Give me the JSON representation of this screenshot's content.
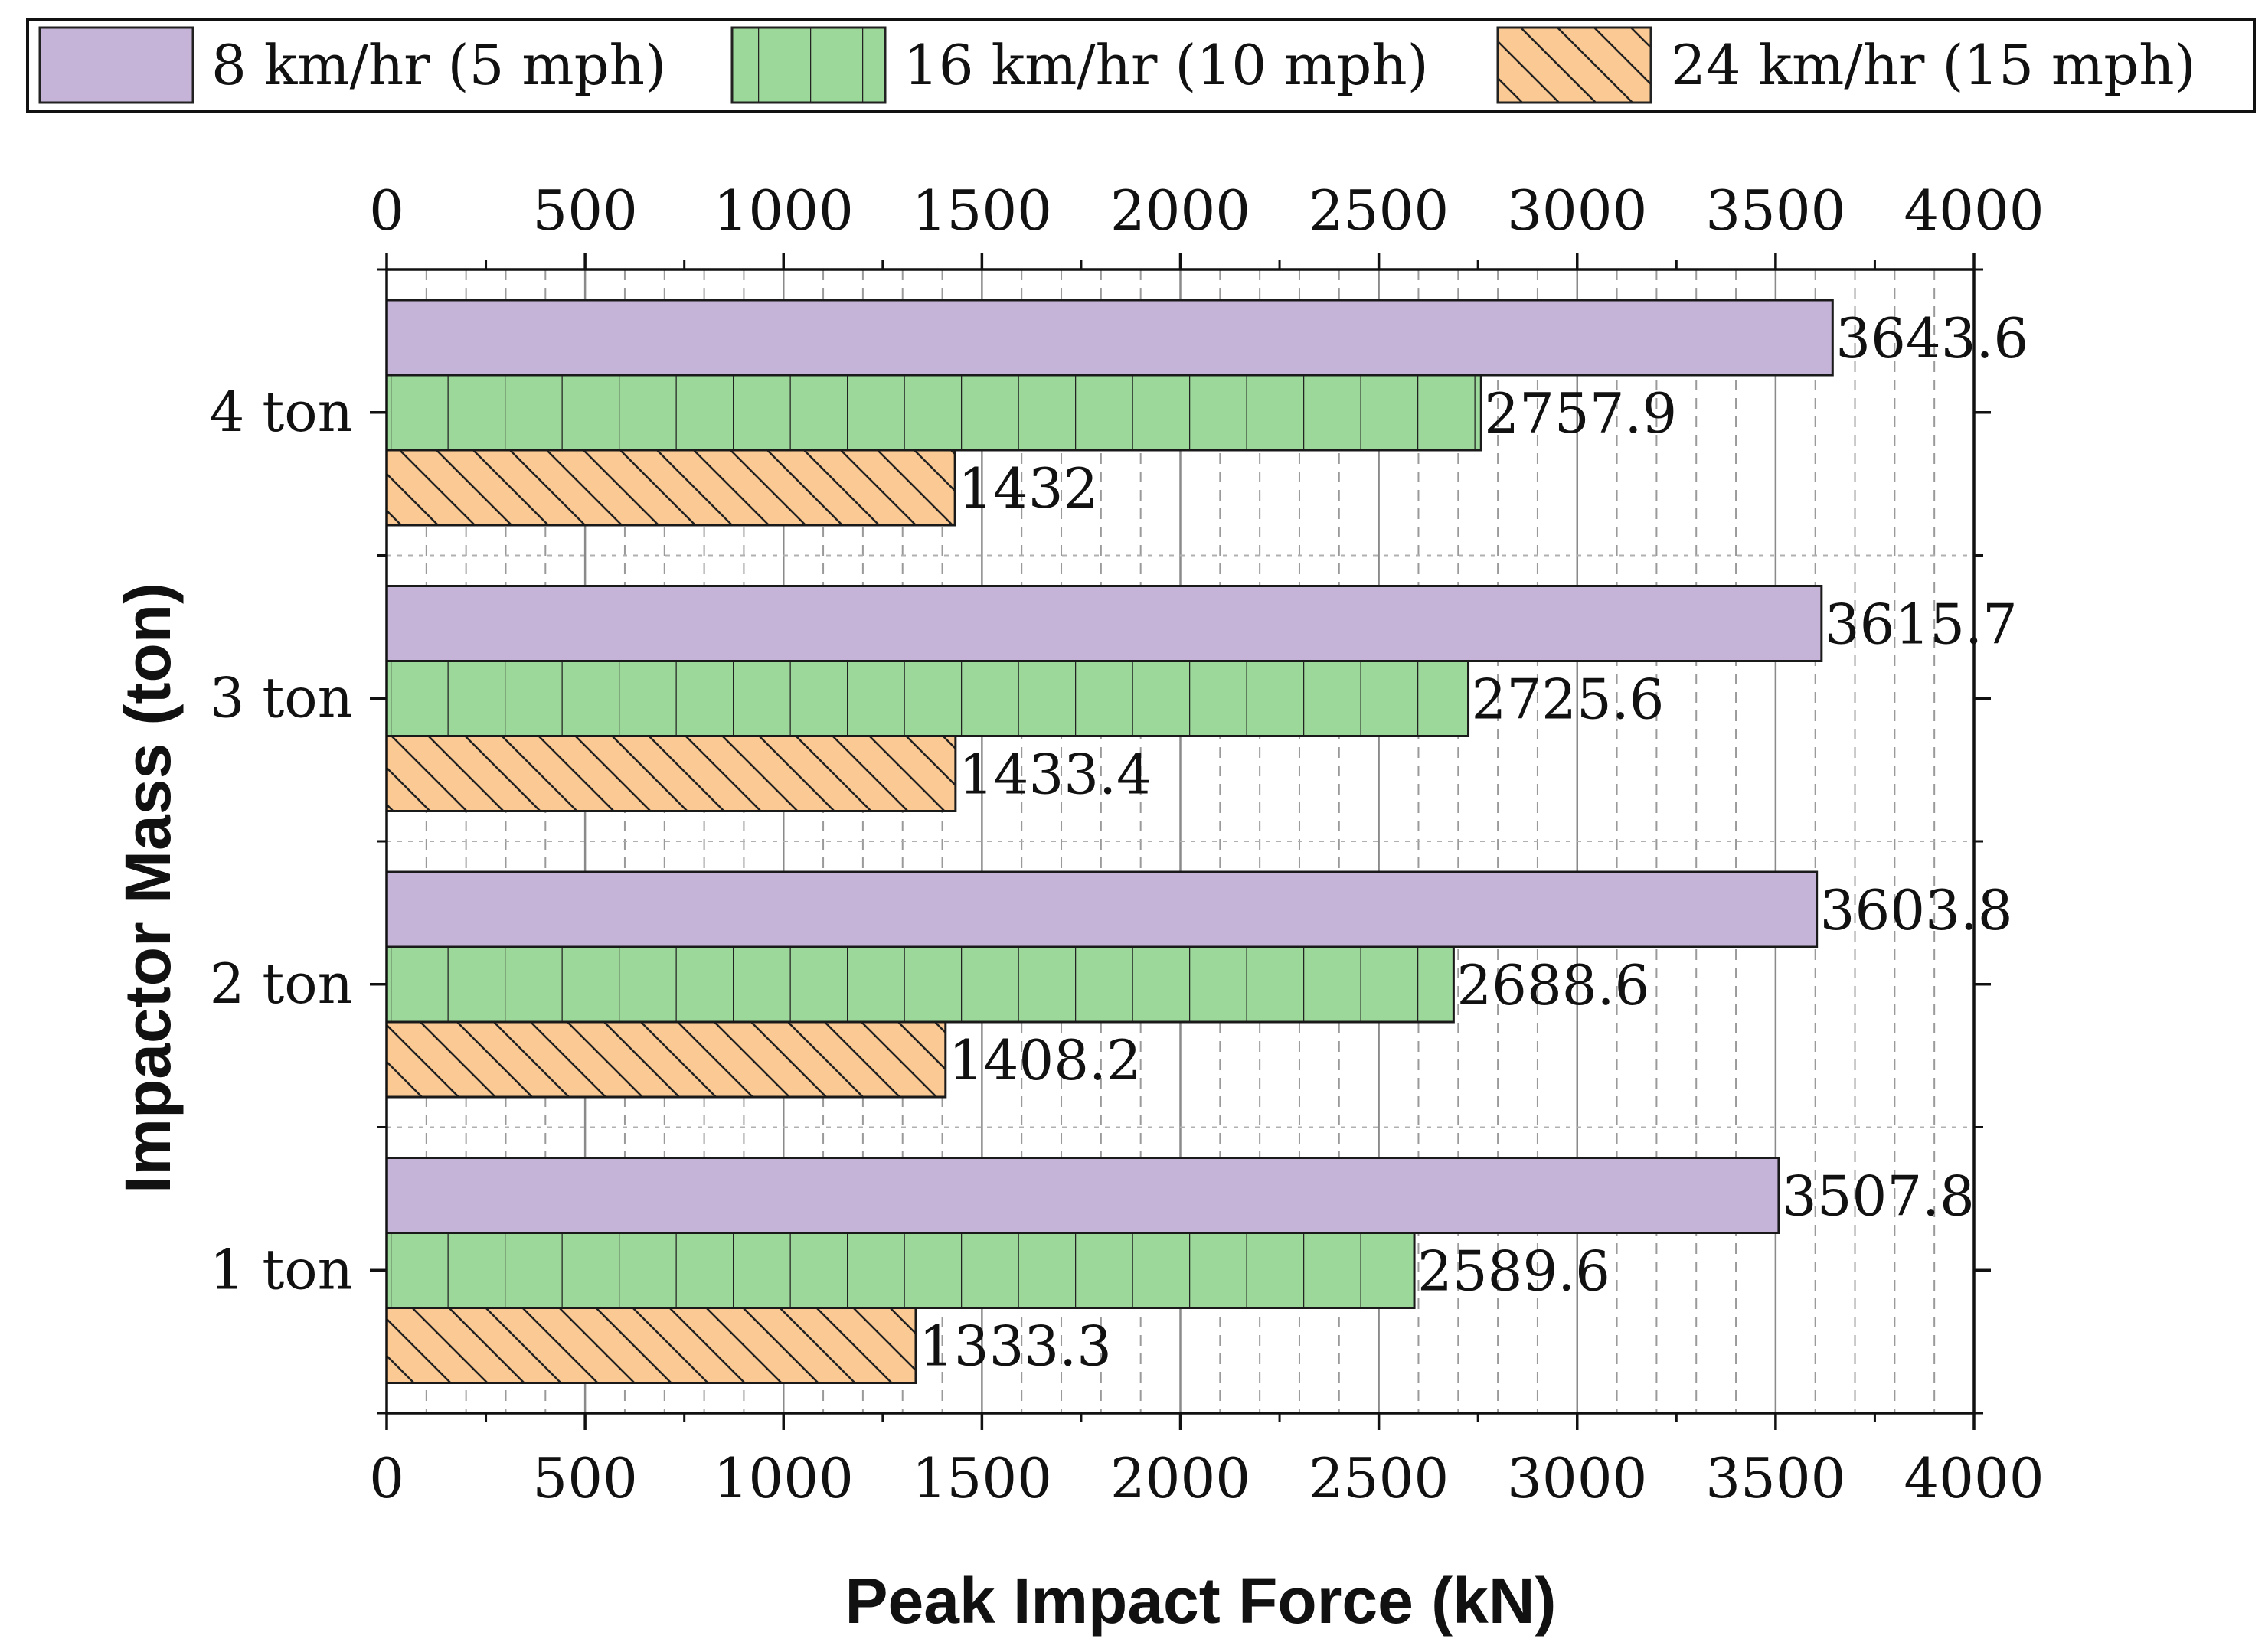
{
  "chart_data": {
    "type": "bar",
    "orientation": "horizontal",
    "categories": [
      "1 ton",
      "2 ton",
      "3 ton",
      "4 ton"
    ],
    "series": [
      {
        "name": "8 km/hr (5 mph)",
        "values": [
          3507.8,
          3603.8,
          3615.7,
          3643.6
        ],
        "labels": [
          "3507.8",
          "3603.8",
          "3615.7",
          "3643.6"
        ],
        "color": "#c5b4d8",
        "pattern": "solid"
      },
      {
        "name": "16 km/hr (10 mph)",
        "values": [
          2589.6,
          2688.6,
          2725.6,
          2757.9
        ],
        "labels": [
          "2589.6",
          "2688.6",
          "2725.6",
          "2757.9"
        ],
        "color": "#9dd89b",
        "pattern": "vertical-lines"
      },
      {
        "name": "24 km/hr (15 mph)",
        "values": [
          1333.3,
          1408.2,
          1433.4,
          1432
        ],
        "labels": [
          "1333.3",
          "1408.2",
          "1433.4",
          "1432"
        ],
        "color": "#fbc993",
        "pattern": "diagonal-hatch"
      }
    ],
    "xlabel": "Peak Impact Force (kN)",
    "ylabel": "Impactor Mass (ton)",
    "xlim": [
      0,
      4000
    ],
    "xticks": [
      0,
      500,
      1000,
      1500,
      2000,
      2500,
      3000,
      3500,
      4000
    ],
    "xtick_labels": [
      "0",
      "500",
      "1000",
      "1500",
      "2000",
      "2500",
      "3000",
      "3500",
      "4000"
    ],
    "grid": {
      "major": "solid",
      "minor": "dashed",
      "minor_step": 100
    },
    "secondary_top_axis": true,
    "legend_position": "top"
  }
}
